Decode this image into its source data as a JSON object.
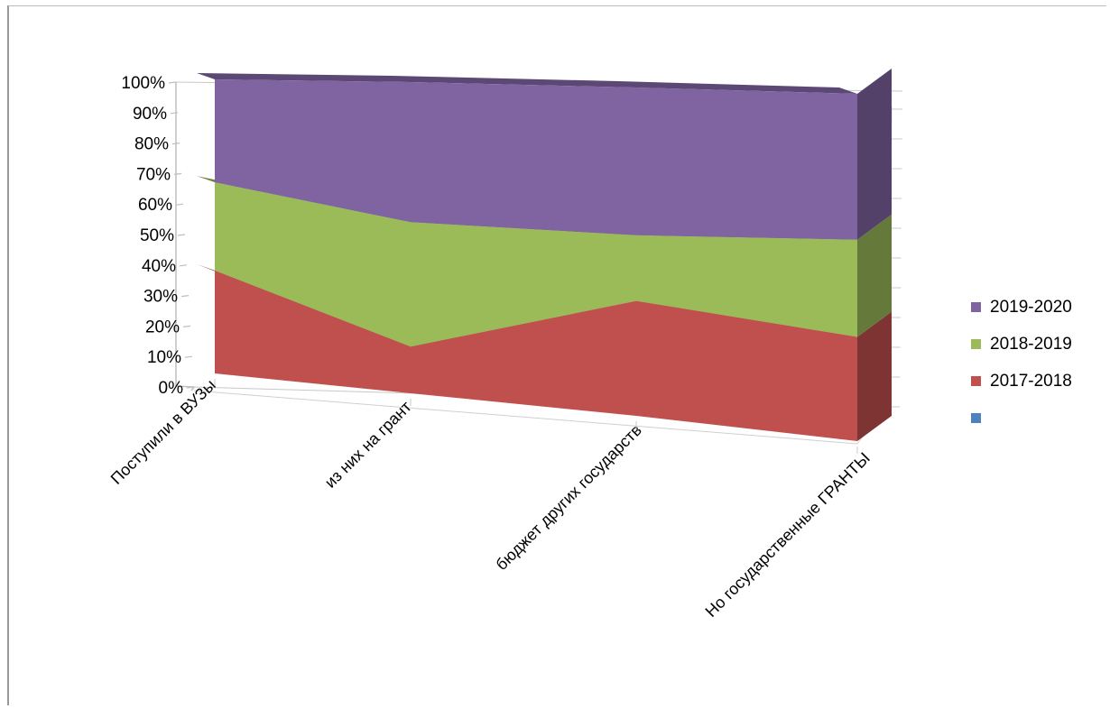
{
  "chart_data": {
    "type": "area",
    "categories": [
      "Поступили в ВУЗы",
      "из них на грант",
      "бюджет других государств",
      "Но государственные ГРАНТЫ"
    ],
    "series": [
      {
        "name": "2017-2018",
        "values": [
          35,
          15,
          35,
          30
        ],
        "color": "#c0504d"
      },
      {
        "name": "2018-2019",
        "values": [
          30,
          40,
          20,
          28
        ],
        "color": "#9bbb59"
      },
      {
        "name": "2019-2020",
        "values": [
          35,
          45,
          45,
          42
        ],
        "color": "#8064a2"
      },
      {
        "name": "",
        "values": [
          0,
          0,
          0,
          0
        ],
        "color": "#4f81bd"
      }
    ],
    "y_ticks": [
      "0%",
      "10%",
      "20%",
      "30%",
      "40%",
      "50%",
      "60%",
      "70%",
      "80%",
      "90%",
      "100%"
    ],
    "ylim": [
      0,
      100
    ],
    "stacked": "percent",
    "three_d": true,
    "legend_position": "right",
    "title": "",
    "xlabel": "",
    "ylabel": ""
  }
}
